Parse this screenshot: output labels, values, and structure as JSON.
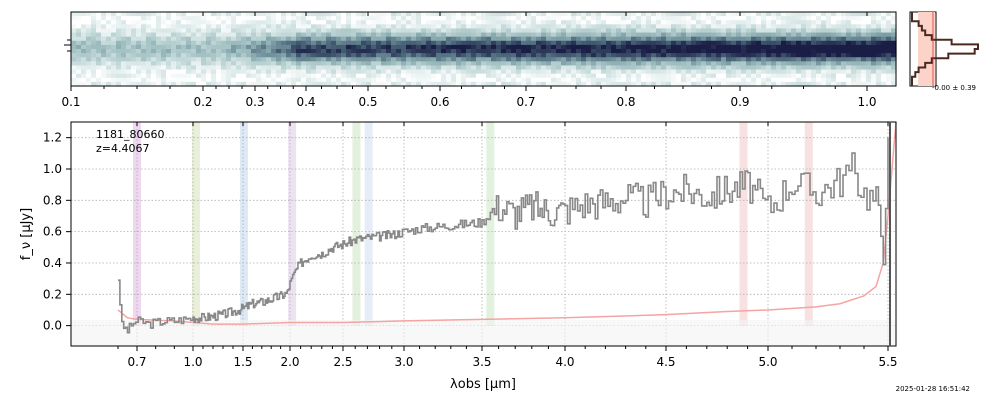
{
  "chart_data": [
    {
      "type": "heatmap",
      "name": "2d-spectrum",
      "x_ticks": [
        "0.1",
        "0.2",
        "0.3",
        "0.4",
        "0.5",
        "0.6",
        "0.7",
        "0.8",
        "0.9",
        "1.0"
      ],
      "colormap": [
        "#ffffff",
        "#c7dcdc",
        "#8fb0b4",
        "#4d6a7c",
        "#1a1d45"
      ]
    },
    {
      "type": "area",
      "name": "profile-histogram",
      "label": "-0.00 ± 0.39",
      "fill_color": "#fbd3c8",
      "line_color": "#4a2a20"
    },
    {
      "type": "line",
      "name": "1d-spectrum",
      "ylabel": "f_ν [μJy]",
      "xlabel": "λobs [μm]",
      "xlim": [
        0.6,
        5.52
      ],
      "ylim": [
        -0.13,
        1.3
      ],
      "x_ticks": [
        {
          "v": 0.7,
          "label": "0.7"
        },
        {
          "v": 1.0,
          "label": "1.0"
        },
        {
          "v": 1.5,
          "label": "1.5"
        },
        {
          "v": 2.0,
          "label": "2.0"
        },
        {
          "v": 2.5,
          "label": "2.5"
        },
        {
          "v": 3.0,
          "label": "3.0"
        },
        {
          "v": 3.5,
          "label": "3.5"
        },
        {
          "v": 4.0,
          "label": "4.0"
        },
        {
          "v": 4.5,
          "label": "4.5"
        },
        {
          "v": 5.0,
          "label": "5.0"
        },
        {
          "v": 5.5,
          "label": "5.5"
        }
      ],
      "y_ticks": [
        {
          "v": 0.0,
          "label": "0.0"
        },
        {
          "v": 0.2,
          "label": "0.2"
        },
        {
          "v": 0.4,
          "label": "0.4"
        },
        {
          "v": 0.6,
          "label": "0.6"
        },
        {
          "v": 0.8,
          "label": "0.8"
        },
        {
          "v": 1.0,
          "label": "1.0"
        },
        {
          "v": 1.2,
          "label": "1.2"
        }
      ],
      "grid": true,
      "annotation": {
        "line1": "1181_80660",
        "line2": "z=4.4067"
      },
      "series": [
        {
          "color": "#888888",
          "points": [
            [
              0.6,
              0.3
            ],
            [
              0.62,
              0.0
            ],
            [
              0.65,
              -0.03
            ],
            [
              0.68,
              0.02
            ],
            [
              0.72,
              0.03
            ],
            [
              0.76,
              0.01
            ],
            [
              0.8,
              0.02
            ],
            [
              0.85,
              0.03
            ],
            [
              0.9,
              0.03
            ],
            [
              0.95,
              0.04
            ],
            [
              1.0,
              0.05
            ],
            [
              1.1,
              0.05
            ],
            [
              1.2,
              0.06
            ],
            [
              1.3,
              0.07
            ],
            [
              1.4,
              0.09
            ],
            [
              1.5,
              0.11
            ],
            [
              1.6,
              0.14
            ],
            [
              1.7,
              0.15
            ],
            [
              1.8,
              0.17
            ],
            [
              1.9,
              0.19
            ],
            [
              1.97,
              0.21
            ],
            [
              2.0,
              0.27
            ],
            [
              2.05,
              0.35
            ],
            [
              2.1,
              0.4
            ],
            [
              2.2,
              0.45
            ],
            [
              2.3,
              0.46
            ],
            [
              2.4,
              0.5
            ],
            [
              2.5,
              0.52
            ],
            [
              2.6,
              0.55
            ],
            [
              2.7,
              0.56
            ],
            [
              2.8,
              0.57
            ],
            [
              2.9,
              0.58
            ],
            [
              3.0,
              0.6
            ],
            [
              3.1,
              0.62
            ],
            [
              3.2,
              0.63
            ],
            [
              3.3,
              0.64
            ],
            [
              3.4,
              0.65
            ],
            [
              3.5,
              0.66
            ],
            [
              3.55,
              0.72
            ],
            [
              3.6,
              0.76
            ],
            [
              3.7,
              0.72
            ],
            [
              3.8,
              0.76
            ],
            [
              3.9,
              0.73
            ],
            [
              4.0,
              0.74
            ],
            [
              4.1,
              0.78
            ],
            [
              4.2,
              0.79
            ],
            [
              4.3,
              0.82
            ],
            [
              4.4,
              0.79
            ],
            [
              4.5,
              0.85
            ],
            [
              4.6,
              0.86
            ],
            [
              4.7,
              0.83
            ],
            [
              4.8,
              0.87
            ],
            [
              4.9,
              0.9
            ],
            [
              5.0,
              0.75
            ],
            [
              5.1,
              0.92
            ],
            [
              5.2,
              0.85
            ],
            [
              5.3,
              0.93
            ],
            [
              5.35,
              1.0
            ],
            [
              5.4,
              0.85
            ],
            [
              5.45,
              0.8
            ],
            [
              5.48,
              0.5
            ],
            [
              5.5,
              1.2
            ]
          ]
        },
        {
          "color": "#f5a3a3",
          "points": [
            [
              0.6,
              0.1
            ],
            [
              0.65,
              0.05
            ],
            [
              0.7,
              0.04
            ],
            [
              0.9,
              0.03
            ],
            [
              1.2,
              0.01
            ],
            [
              1.5,
              0.01
            ],
            [
              2.0,
              0.02
            ],
            [
              2.5,
              0.02
            ],
            [
              3.0,
              0.03
            ],
            [
              3.5,
              0.04
            ],
            [
              4.0,
              0.05
            ],
            [
              4.5,
              0.07
            ],
            [
              4.8,
              0.09
            ],
            [
              5.0,
              0.1
            ],
            [
              5.2,
              0.12
            ],
            [
              5.3,
              0.14
            ],
            [
              5.4,
              0.19
            ],
            [
              5.45,
              0.25
            ],
            [
              5.48,
              0.4
            ],
            [
              5.5,
              0.7
            ],
            [
              5.52,
              1.3
            ]
          ]
        }
      ],
      "bands": [
        {
          "x": 0.7,
          "color": "#e9c6e9"
        },
        {
          "x": 1.03,
          "color": "#dfe8c8"
        },
        {
          "x": 1.51,
          "color": "#cfe1f1"
        },
        {
          "x": 2.02,
          "color": "#e4d6ec"
        },
        {
          "x": 2.61,
          "color": "#d8ead0"
        },
        {
          "x": 2.71,
          "color": "#dbe6f2"
        },
        {
          "x": 3.55,
          "color": "#d6ecd0"
        },
        {
          "x": 4.88,
          "color": "#f3d4d4"
        },
        {
          "x": 5.17,
          "color": "#f3d4d4"
        }
      ],
      "timestamp": "2025-01-28 16:51:42"
    }
  ]
}
